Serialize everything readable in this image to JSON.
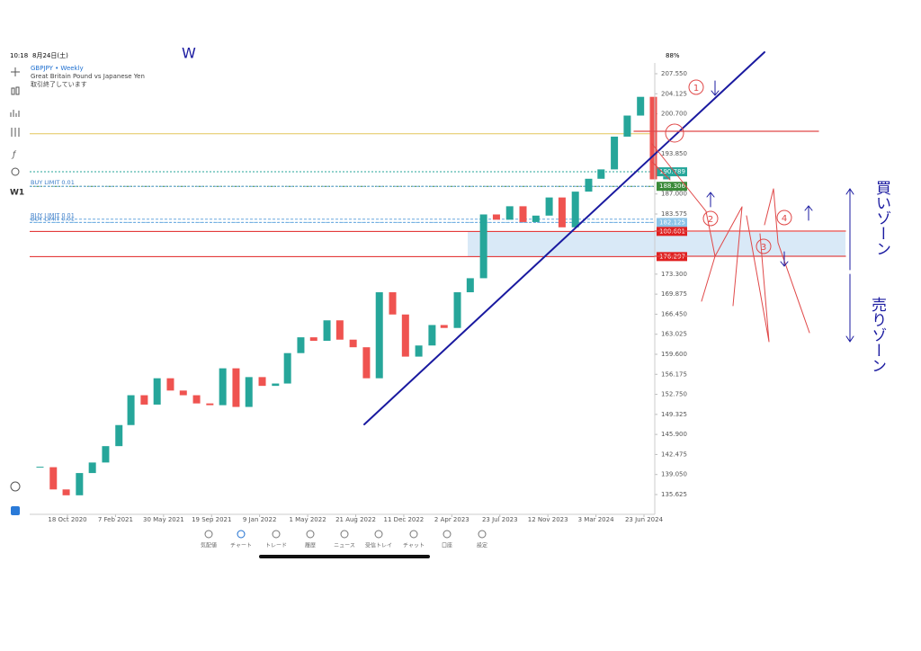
{
  "status_bar": {
    "time": "10:18",
    "date": "8月24日(土)",
    "battery": "88%"
  },
  "header": {
    "symbol": "GBPJPY • Weekly",
    "name": "Great Britain Pound vs Japanese Yen",
    "state": "取引終了しています"
  },
  "toolbar": {
    "timeframe": "W1"
  },
  "chart_data": {
    "type": "candlestick",
    "categories": [
      "2020-08",
      "2020-09",
      "2020-10",
      "2020-11",
      "2020-12",
      "2021-01",
      "2021-02",
      "2021-03",
      "2021-04",
      "2021-05",
      "2021-06",
      "2021-07",
      "2021-08",
      "2021-09",
      "2021-10",
      "2021-11",
      "2021-12",
      "2022-01",
      "2022-02",
      "2022-03",
      "2022-04",
      "2022-05",
      "2022-06",
      "2022-07",
      "2022-08",
      "2022-09",
      "2022-10",
      "2022-11",
      "2022-12",
      "2023-01",
      "2023-02",
      "2023-03",
      "2023-04",
      "2023-05",
      "2023-06",
      "2023-07",
      "2023-08",
      "2023-09",
      "2023-10",
      "2023-11",
      "2023-12",
      "2024-01",
      "2024-02",
      "2024-03",
      "2024-04",
      "2024-05",
      "2024-06",
      "2024-07",
      "2024-08"
    ],
    "series": [
      {
        "name": "GBPJPY",
        "up_color": "#26a69a",
        "down_color": "#ef5350",
        "values": [
          140.3,
          136.5,
          135.5,
          139.3,
          141.1,
          143.9,
          147.5,
          152.6,
          151.0,
          155.5,
          153.4,
          152.6,
          151.2,
          150.9,
          157.2,
          150.6,
          155.7,
          154.2,
          154.6,
          159.8,
          162.5,
          161.9,
          165.4,
          162.1,
          160.8,
          155.5,
          170.2,
          166.4,
          159.2,
          161.1,
          164.6,
          164.1,
          170.2,
          172.6,
          183.5,
          182.6,
          184.9,
          182.2,
          183.3,
          186.4,
          181.3,
          187.4,
          189.6,
          191.2,
          196.8,
          200.4,
          203.6,
          189.5,
          190.0
        ]
      }
    ],
    "ylim": [
      134.0,
      209.5
    ],
    "yticks": [
      {
        "value": 207.55,
        "label": "207.550"
      },
      {
        "value": 204.125,
        "label": "204.125"
      },
      {
        "value": 200.7,
        "label": "200.700"
      },
      {
        "value": 193.85,
        "label": "193.850"
      },
      {
        "value": 187.0,
        "label": "187.000"
      },
      {
        "value": 183.575,
        "label": "183.575"
      },
      {
        "value": 173.3,
        "label": "173.300"
      },
      {
        "value": 169.875,
        "label": "169.875"
      },
      {
        "value": 166.45,
        "label": "166.450"
      },
      {
        "value": 163.025,
        "label": "163.025"
      },
      {
        "value": 159.6,
        "label": "159.600"
      },
      {
        "value": 156.175,
        "label": "156.175"
      },
      {
        "value": 152.75,
        "label": "152.750"
      },
      {
        "value": 149.325,
        "label": "149.325"
      },
      {
        "value": 145.9,
        "label": "145.900"
      },
      {
        "value": 142.475,
        "label": "142.475"
      },
      {
        "value": 139.05,
        "label": "139.050"
      },
      {
        "value": 135.625,
        "label": "135.625"
      }
    ],
    "xticks": [
      {
        "value": "2020-10-18",
        "label": "18 Oct 2020"
      },
      {
        "value": "2021-02-07",
        "label": "7 Feb 2021"
      },
      {
        "value": "2021-05-30",
        "label": "30 May 2021"
      },
      {
        "value": "2021-09-19",
        "label": "19 Sep 2021"
      },
      {
        "value": "2022-01-09",
        "label": "9 Jan 2022"
      },
      {
        "value": "2022-05-01",
        "label": "1 May 2022"
      },
      {
        "value": "2022-08-21",
        "label": "21 Aug 2022"
      },
      {
        "value": "2022-12-11",
        "label": "11 Dec 2022"
      },
      {
        "value": "2023-04-02",
        "label": "2 Apr 2023"
      },
      {
        "value": "2023-07-23",
        "label": "23 Jul 2023"
      },
      {
        "value": "2023-11-12",
        "label": "12 Nov 2023"
      },
      {
        "value": "2024-03-03",
        "label": "3 Mar 2024"
      },
      {
        "value": "2024-06-23",
        "label": "23 Jun 2024"
      }
    ],
    "levels": [
      {
        "value": 197.3,
        "color": "#e3c55a"
      },
      {
        "value": 190.789,
        "color": "#26a69a",
        "tag": true
      },
      {
        "value": 188.306,
        "color": "#3a8a3a",
        "tag": true
      },
      {
        "value": 182.125,
        "color": "#8cc4e8",
        "tag": true
      },
      {
        "value": 180.601,
        "color": "#e02020",
        "tag": true
      },
      {
        "value": 176.297,
        "color": "#e02020",
        "tag": true
      }
    ],
    "orders": [
      {
        "label": "BUY LIMIT 0.01",
        "value": 188.306
      },
      {
        "label": "BUY LIMIT 0.01",
        "value": 182.7
      },
      {
        "label": "BUY LIMIT 0.01",
        "value": 182.125
      }
    ]
  },
  "nav": [
    "気配値",
    "チャート",
    "トレード",
    "履歴",
    "ニュース",
    "受信トレイ",
    "チャット",
    "口座",
    "設定"
  ],
  "annotations": {
    "w": "W",
    "n1": "1",
    "n2": "2",
    "n3": "3",
    "n4": "4",
    "buy_zone": "買いゾーン",
    "sell_zone": "売りゾーン"
  }
}
